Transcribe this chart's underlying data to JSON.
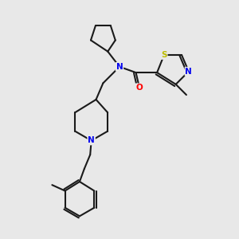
{
  "bg_color": "#e8e8e8",
  "bond_color": "#1a1a1a",
  "bond_width": 1.5,
  "atom_colors": {
    "N": "#0000ee",
    "O": "#ff0000",
    "S": "#bbbb00",
    "C": "#1a1a1a"
  },
  "font_size_atom": 7.5
}
